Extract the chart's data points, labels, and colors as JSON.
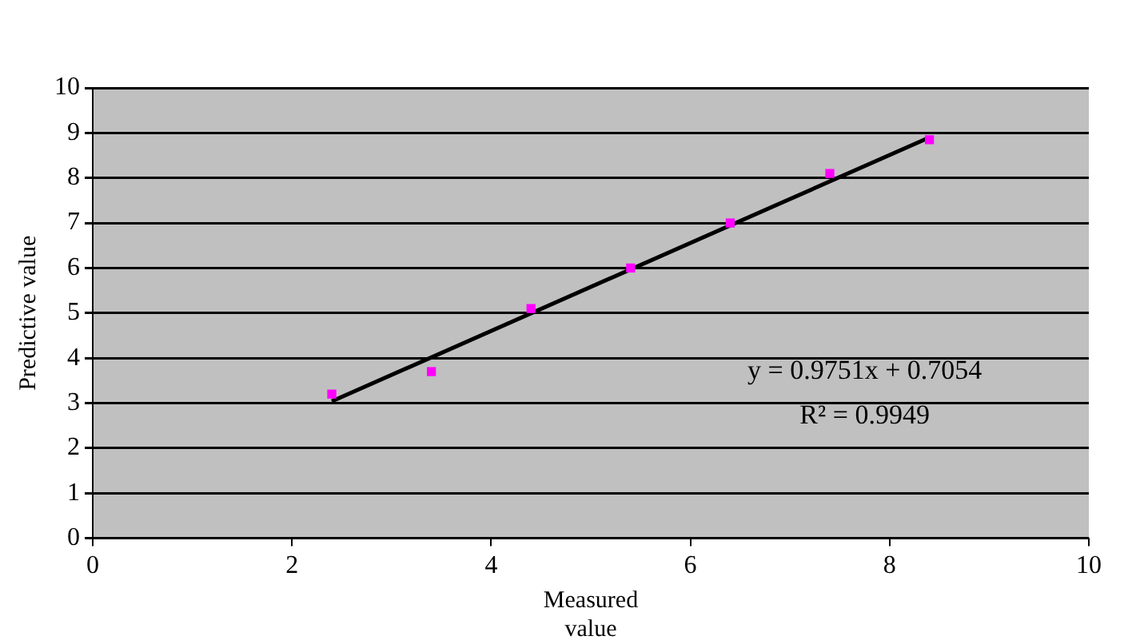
{
  "chart_data": {
    "type": "scatter",
    "xlabel": "Measured value",
    "ylabel": "Predictive value",
    "xlim": [
      0,
      10
    ],
    "xticks": [
      0,
      2,
      4,
      6,
      8,
      10
    ],
    "ylim": [
      0,
      10
    ],
    "yticks": [
      0,
      1,
      2,
      3,
      4,
      5,
      6,
      7,
      8,
      9,
      10
    ],
    "grid": "y",
    "legend": false,
    "marker": "square",
    "series": [
      {
        "color": "#ff00ff",
        "x": [
          2.4,
          3.4,
          4.4,
          5.4,
          6.4,
          7.4,
          8.4
        ],
        "values": [
          3.2,
          3.7,
          5.1,
          6.0,
          7.0,
          8.1,
          8.85
        ]
      },
      {
        "type": "line",
        "color": "#000000",
        "marker": "none",
        "line_style": "solid",
        "x": [
          2.4,
          8.4
        ],
        "values": [
          3.04,
          8.9
        ]
      }
    ],
    "annotations": [
      "y = 0.9751x + 0.7054",
      "R² = 0.9949"
    ]
  }
}
